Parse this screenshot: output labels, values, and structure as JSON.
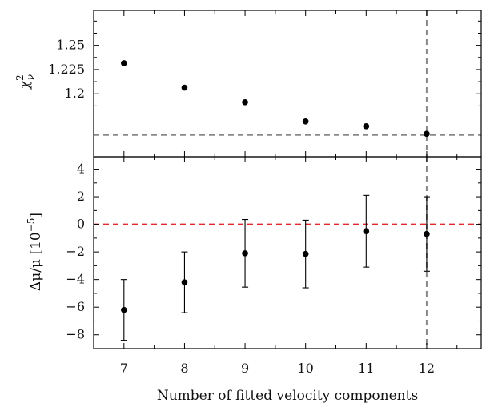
{
  "chart_data": [
    {
      "type": "scatter",
      "panel": "top",
      "ylabel": "χ²_ν",
      "ylabel_main": "χ",
      "ylabel_sup": "2",
      "ylabel_sub": "ν",
      "x": [
        7,
        8,
        9,
        10,
        11,
        12
      ],
      "y": [
        1.2316,
        1.2063,
        1.1913,
        1.1715,
        1.1665,
        1.1587
      ],
      "xlim": [
        6.5,
        12.9
      ],
      "ylim": [
        1.135,
        1.286
      ],
      "yticks": [
        1.2,
        1.225,
        1.25
      ],
      "ytick_labels": [
        "1.2",
        "1.225",
        "1.25"
      ],
      "hline": {
        "y": 1.1575,
        "style": "dashed",
        "color": "#888888"
      },
      "vline": {
        "x": 12,
        "style": "dashed",
        "color": "#888888"
      },
      "marker_color": "#000000",
      "grid": false
    },
    {
      "type": "scatter",
      "panel": "bottom",
      "ylabel": "Δμ/μ [10⁻⁵]",
      "ylabel_main": "Δμ/μ [10",
      "ylabel_sup": "−5",
      "ylabel_end": "]",
      "xlabel": "Number of fitted velocity components",
      "x": [
        7,
        8,
        9,
        10,
        11,
        12
      ],
      "y": [
        -6.2,
        -4.2,
        -2.1,
        -2.15,
        -0.5,
        -0.7
      ],
      "yerr": [
        2.2,
        2.2,
        2.45,
        2.45,
        2.6,
        2.7
      ],
      "xlim": [
        6.5,
        12.9
      ],
      "ylim": [
        -9.0,
        4.9
      ],
      "xticks": [
        7,
        8,
        9,
        10,
        11,
        12
      ],
      "xtick_labels": [
        "7",
        "8",
        "9",
        "10",
        "11",
        "12"
      ],
      "yticks": [
        -8,
        -6,
        -4,
        -2,
        0,
        2,
        4
      ],
      "ytick_labels": [
        "−8",
        "−6",
        "−4",
        "−2",
        "0",
        "2",
        "4"
      ],
      "hline": {
        "y": 0,
        "style": "dashed",
        "color": "#e0282e"
      },
      "vline": {
        "x": 12,
        "style": "dashed",
        "color": "#888888"
      },
      "marker_color": "#000000",
      "grid": false
    }
  ]
}
